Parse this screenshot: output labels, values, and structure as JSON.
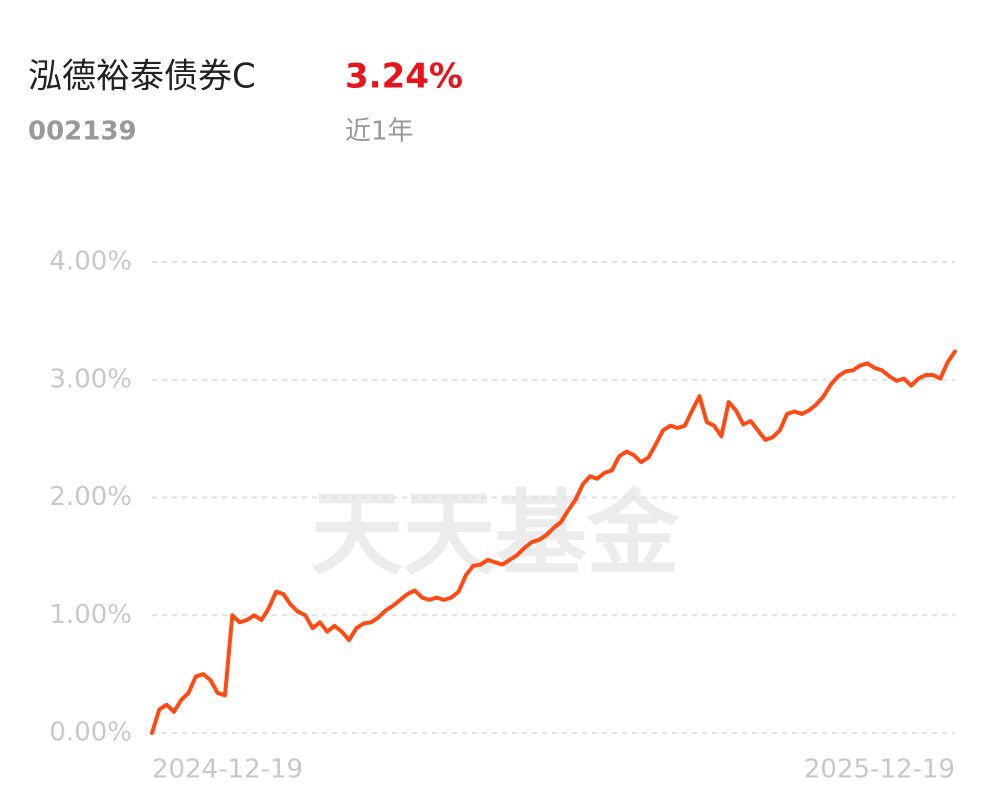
{
  "chart_data": {
    "type": "line",
    "title": "泓德裕泰债券C",
    "return_value": "3.24%",
    "code": "002139",
    "return_period": "近1年",
    "watermark": "天天基金",
    "color": "#ff4a14",
    "grid": true,
    "ylim": [
      0,
      4
    ],
    "yticks": [
      {
        "value": 0,
        "label": "0.00%"
      },
      {
        "value": 1,
        "label": "1.00%"
      },
      {
        "value": 2,
        "label": "2.00%"
      },
      {
        "value": 3,
        "label": "3.00%"
      },
      {
        "value": 4,
        "label": "4.00%"
      }
    ],
    "categories": [
      "2024-12-19",
      null,
      null,
      null,
      null,
      null,
      null,
      null,
      null,
      null,
      null,
      null,
      null,
      null,
      null,
      null,
      null,
      null,
      null,
      null,
      null,
      null,
      null,
      null,
      null,
      null,
      null,
      null,
      null,
      null,
      null,
      null,
      null,
      null,
      null,
      null,
      null,
      null,
      null,
      null,
      null,
      null,
      null,
      null,
      null,
      null,
      null,
      null,
      null,
      null,
      null,
      null,
      null,
      null,
      null,
      null,
      null,
      null,
      null,
      null,
      null,
      null,
      null,
      null,
      null,
      null,
      null,
      null,
      null,
      null,
      null,
      null,
      null,
      null,
      null,
      null,
      null,
      null,
      null,
      null,
      null,
      null,
      null,
      null,
      null,
      null,
      null,
      null,
      null,
      null,
      null,
      null,
      null,
      null,
      null,
      null,
      null,
      null,
      null,
      null,
      null,
      null,
      null,
      null,
      null,
      null,
      null,
      null,
      null,
      null,
      "2025-12-19"
    ],
    "values": [
      0,
      0.2,
      0.24,
      0.18,
      0.28,
      0.34,
      0.48,
      0.5,
      0.45,
      0.34,
      0.32,
      1.0,
      0.94,
      0.96,
      1.0,
      0.96,
      1.06,
      1.2,
      1.18,
      1.09,
      1.03,
      1.0,
      0.89,
      0.94,
      0.86,
      0.91,
      0.86,
      0.79,
      0.89,
      0.93,
      0.94,
      0.98,
      1.04,
      1.08,
      1.13,
      1.18,
      1.21,
      1.15,
      1.13,
      1.15,
      1.13,
      1.15,
      1.2,
      1.34,
      1.42,
      1.43,
      1.47,
      1.45,
      1.43,
      1.47,
      1.51,
      1.57,
      1.62,
      1.64,
      1.68,
      1.74,
      1.79,
      1.89,
      1.98,
      2.11,
      2.18,
      2.16,
      2.21,
      2.23,
      2.35,
      2.39,
      2.36,
      2.3,
      2.34,
      2.45,
      2.57,
      2.61,
      2.59,
      2.61,
      2.74,
      2.86,
      2.64,
      2.61,
      2.52,
      2.81,
      2.74,
      2.62,
      2.65,
      2.57,
      2.49,
      2.51,
      2.57,
      2.71,
      2.73,
      2.71,
      2.74,
      2.79,
      2.86,
      2.96,
      3.03,
      3.07,
      3.08,
      3.12,
      3.14,
      3.1,
      3.08,
      3.03,
      2.99,
      3.01,
      2.95,
      3.01,
      3.04,
      3.04,
      3.01,
      3.15,
      3.24
    ]
  }
}
